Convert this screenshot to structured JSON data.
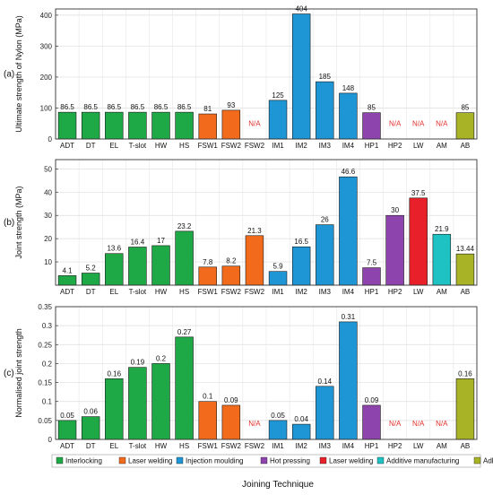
{
  "colors": {
    "interlocking": "#1fa846",
    "laser_welding_fsw": "#f26b1d",
    "injection_moulding": "#1e96d6",
    "hot_pressing": "#8e44ad",
    "laser_welding_lw": "#e8202a",
    "additive_manufacturing": "#1ec2c2",
    "adhesive_bonding": "#a8b326",
    "na_text": "#e0302a"
  },
  "chart_data": {
    "type": "bar",
    "xlabel": "Joining Technique",
    "categories": [
      "ADT",
      "DT",
      "EL",
      "T-slot",
      "HW",
      "HS",
      "FSW1",
      "FSW2",
      "FSW2",
      "IM1",
      "IM2",
      "IM3",
      "IM4",
      "HP1",
      "HP2",
      "LW",
      "AM",
      "AB"
    ],
    "category_groups": [
      "interlocking",
      "interlocking",
      "interlocking",
      "interlocking",
      "interlocking",
      "interlocking",
      "laser_welding_fsw",
      "laser_welding_fsw",
      "laser_welding_fsw",
      "injection_moulding",
      "injection_moulding",
      "injection_moulding",
      "injection_moulding",
      "hot_pressing",
      "hot_pressing",
      "laser_welding_lw",
      "additive_manufacturing",
      "adhesive_bonding"
    ],
    "na_label": "N/A",
    "legend": [
      {
        "key": "interlocking",
        "label": "Interlocking"
      },
      {
        "key": "laser_welding_fsw",
        "label": "Laser welding"
      },
      {
        "key": "injection_moulding",
        "label": "Injection moulding"
      },
      {
        "key": "hot_pressing",
        "label": "Hot pressing"
      },
      {
        "key": "laser_welding_lw",
        "label": "Laser welding"
      },
      {
        "key": "additive_manufacturing",
        "label": "Additive manufacturing"
      },
      {
        "key": "adhesive_bonding",
        "label": "Adhesive bonding"
      }
    ],
    "legend_position": "bottom",
    "grid": true,
    "panels": [
      {
        "panel_label": "(a)",
        "ylabel": "Ultimate strength of Nylon (MPa)",
        "ylim": [
          0,
          420
        ],
        "yticks": [
          0,
          100,
          200,
          300,
          400
        ],
        "ytick_labels": [
          "0",
          "100",
          "200",
          "300",
          "400"
        ],
        "values": [
          86.5,
          86.5,
          86.5,
          86.5,
          86.5,
          86.5,
          81,
          93,
          null,
          125,
          404,
          185,
          148,
          85,
          null,
          null,
          null,
          85
        ],
        "value_labels": [
          "86.5",
          "86.5",
          "86.5",
          "86.5",
          "86.5",
          "86.5",
          "81",
          "93",
          "N/A",
          "125",
          "404",
          "185",
          "148",
          "85",
          "N/A",
          "N/A",
          "N/A",
          "85"
        ]
      },
      {
        "panel_label": "(b)",
        "ylabel": "Joint strength (MPa)",
        "ylim": [
          0,
          54
        ],
        "yticks": [
          10,
          20,
          30,
          40,
          50
        ],
        "ytick_labels": [
          "10",
          "20",
          "30",
          "40",
          "50"
        ],
        "values": [
          4.1,
          5.2,
          13.6,
          16.4,
          17,
          23.2,
          7.8,
          8.2,
          21.3,
          5.9,
          16.5,
          26,
          46.6,
          7.5,
          30,
          37.5,
          21.9,
          13.44
        ],
        "value_labels": [
          "4.1",
          "5.2",
          "13.6",
          "16.4",
          "17",
          "23.2",
          "7.8",
          "8.2",
          "21.3",
          "5.9",
          "16.5",
          "26",
          "46.6",
          "7.5",
          "30",
          "37.5",
          "21.9",
          "13.44"
        ]
      },
      {
        "panel_label": "(c)",
        "ylabel": "Normalised joint strength",
        "ylim": [
          0,
          0.35
        ],
        "yticks": [
          0,
          0.05,
          0.1,
          0.15,
          0.2,
          0.25,
          0.3
        ],
        "ytick_labels": [
          "0",
          "0.05",
          "0.1",
          "0.15",
          "0.2",
          "0.25",
          "0.3"
        ],
        "values": [
          0.05,
          0.06,
          0.16,
          0.19,
          0.2,
          0.27,
          0.1,
          0.09,
          null,
          0.05,
          0.04,
          0.14,
          0.31,
          0.09,
          null,
          null,
          null,
          0.16
        ],
        "value_labels": [
          "0.05",
          "0.06",
          "0.16",
          "0.19",
          "0.2",
          "0.27",
          "0.1",
          "0.09",
          "N/A",
          "0.05",
          "0.04",
          "0.14",
          "0.31",
          "0.09",
          "N/A",
          "N/A",
          "N/A",
          "0.16"
        ],
        "extra_top_tick": "0.35"
      }
    ]
  }
}
